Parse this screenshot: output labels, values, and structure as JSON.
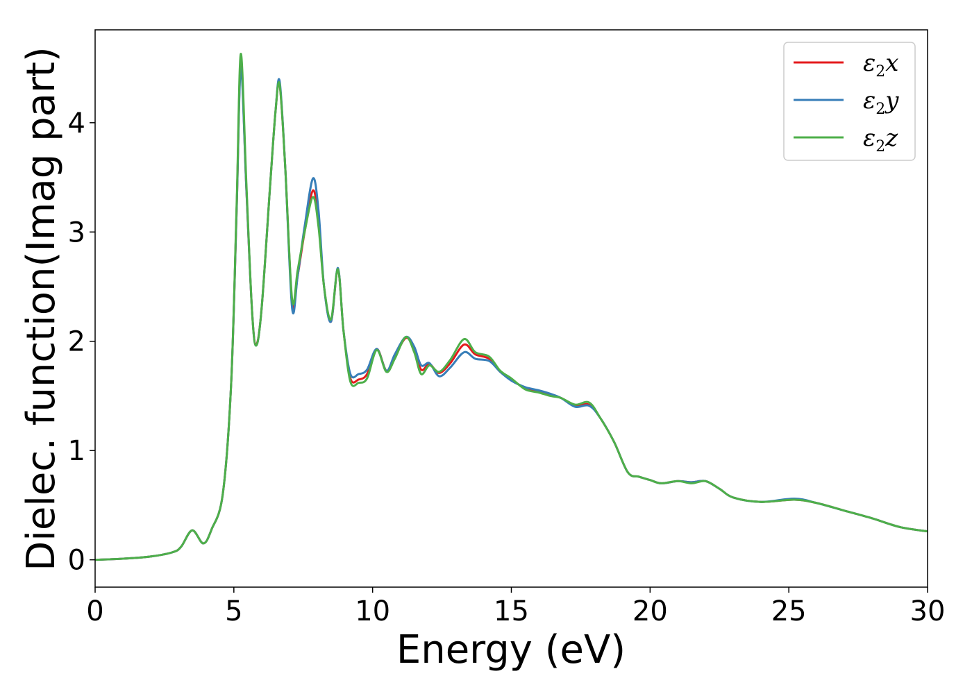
{
  "chart_data": {
    "type": "line",
    "title": "",
    "xlabel": "Energy (eV)",
    "ylabel": "Dielec. function(Imag part)",
    "xlim": [
      0,
      30
    ],
    "ylim": [
      -0.25,
      4.85
    ],
    "xticks": [
      0,
      5,
      10,
      15,
      20,
      25,
      30
    ],
    "yticks": [
      0,
      1,
      2,
      3,
      4
    ],
    "xtick_labels": [
      "0",
      "5",
      "10",
      "15",
      "20",
      "25",
      "30"
    ],
    "ytick_labels": [
      "0",
      "1",
      "2",
      "3",
      "4"
    ],
    "grid": false,
    "legend_position": "top-right",
    "series": [
      {
        "name": "ε2x",
        "legend": {
          "symbol": "ε",
          "sub": "2",
          "var": "x"
        },
        "color": "#e41a1c",
        "x": [
          0,
          1,
          2,
          2.8,
          3.1,
          3.5,
          3.9,
          4.2,
          4.6,
          4.9,
          5.1,
          5.25,
          5.45,
          5.65,
          5.8,
          6.0,
          6.3,
          6.5,
          6.65,
          6.85,
          7.1,
          7.3,
          7.55,
          7.85,
          8.05,
          8.25,
          8.5,
          8.75,
          8.95,
          9.2,
          9.5,
          9.8,
          10.15,
          10.5,
          10.8,
          11.2,
          11.5,
          11.75,
          12.05,
          12.4,
          12.8,
          13.3,
          13.7,
          14.2,
          14.6,
          15.0,
          15.5,
          16.0,
          16.4,
          16.8,
          17.3,
          17.8,
          18.2,
          18.7,
          19.2,
          19.6,
          20.0,
          20.4,
          21.0,
          21.5,
          22.0,
          22.5,
          23.0,
          24.0,
          25.2,
          26.0,
          27.0,
          28.0,
          29.0,
          30.0
        ],
        "y": [
          0.0,
          0.01,
          0.03,
          0.07,
          0.12,
          0.27,
          0.15,
          0.28,
          0.6,
          1.6,
          3.2,
          4.55,
          3.4,
          2.3,
          1.97,
          2.3,
          3.4,
          4.1,
          4.35,
          3.6,
          2.35,
          2.6,
          3.0,
          3.38,
          3.1,
          2.5,
          2.18,
          2.66,
          2.1,
          1.66,
          1.65,
          1.7,
          1.93,
          1.73,
          1.86,
          2.03,
          1.93,
          1.74,
          1.79,
          1.71,
          1.8,
          1.97,
          1.88,
          1.84,
          1.72,
          1.65,
          1.57,
          1.54,
          1.51,
          1.48,
          1.41,
          1.42,
          1.3,
          1.08,
          0.8,
          0.76,
          0.73,
          0.7,
          0.72,
          0.71,
          0.72,
          0.65,
          0.57,
          0.53,
          0.55,
          0.52,
          0.45,
          0.38,
          0.3,
          0.26
        ]
      },
      {
        "name": "ε2y",
        "legend": {
          "symbol": "ε",
          "sub": "2",
          "var": "y"
        },
        "color": "#377eb8",
        "x": [
          0,
          1,
          2,
          2.8,
          3.1,
          3.5,
          3.9,
          4.2,
          4.6,
          4.9,
          5.1,
          5.25,
          5.45,
          5.65,
          5.8,
          6.0,
          6.3,
          6.5,
          6.65,
          6.85,
          7.1,
          7.3,
          7.55,
          7.85,
          8.05,
          8.25,
          8.5,
          8.75,
          8.95,
          9.2,
          9.5,
          9.8,
          10.15,
          10.5,
          10.8,
          11.2,
          11.5,
          11.75,
          12.05,
          12.4,
          12.8,
          13.3,
          13.7,
          14.2,
          14.6,
          15.0,
          15.5,
          16.0,
          16.4,
          16.8,
          17.3,
          17.8,
          18.2,
          18.7,
          19.2,
          19.6,
          20.0,
          20.4,
          21.0,
          21.5,
          22.0,
          22.5,
          23.0,
          24.0,
          25.2,
          26.0,
          27.0,
          28.0,
          29.0,
          30.0
        ],
        "y": [
          0.0,
          0.01,
          0.03,
          0.07,
          0.12,
          0.27,
          0.15,
          0.28,
          0.6,
          1.6,
          3.2,
          4.5,
          3.4,
          2.3,
          1.96,
          2.3,
          3.4,
          4.1,
          4.38,
          3.6,
          2.3,
          2.6,
          3.05,
          3.49,
          3.2,
          2.5,
          2.18,
          2.67,
          2.1,
          1.7,
          1.7,
          1.74,
          1.93,
          1.73,
          1.88,
          2.04,
          1.95,
          1.78,
          1.8,
          1.68,
          1.76,
          1.9,
          1.84,
          1.82,
          1.72,
          1.64,
          1.58,
          1.55,
          1.52,
          1.48,
          1.4,
          1.41,
          1.3,
          1.08,
          0.8,
          0.76,
          0.73,
          0.7,
          0.72,
          0.71,
          0.72,
          0.65,
          0.57,
          0.53,
          0.56,
          0.52,
          0.45,
          0.38,
          0.3,
          0.26
        ]
      },
      {
        "name": "ε2z",
        "legend": {
          "symbol": "ε",
          "sub": "2",
          "var": "z"
        },
        "color": "#4daf4a",
        "x": [
          0,
          1,
          2,
          2.8,
          3.1,
          3.5,
          3.9,
          4.2,
          4.6,
          4.9,
          5.1,
          5.25,
          5.45,
          5.65,
          5.8,
          6.0,
          6.3,
          6.5,
          6.65,
          6.85,
          7.1,
          7.3,
          7.55,
          7.85,
          8.05,
          8.25,
          8.5,
          8.75,
          8.95,
          9.2,
          9.5,
          9.8,
          10.15,
          10.5,
          10.8,
          11.2,
          11.5,
          11.75,
          12.05,
          12.4,
          12.8,
          13.3,
          13.7,
          14.2,
          14.6,
          15.0,
          15.5,
          16.0,
          16.4,
          16.8,
          17.3,
          17.8,
          18.2,
          18.7,
          19.2,
          19.6,
          20.0,
          20.4,
          21.0,
          21.5,
          22.0,
          22.5,
          23.0,
          24.0,
          25.2,
          26.0,
          27.0,
          28.0,
          29.0,
          30.0
        ],
        "y": [
          0.0,
          0.01,
          0.03,
          0.07,
          0.12,
          0.27,
          0.15,
          0.28,
          0.6,
          1.6,
          3.25,
          4.63,
          3.45,
          2.3,
          1.96,
          2.3,
          3.4,
          4.1,
          4.35,
          3.6,
          2.38,
          2.65,
          3.0,
          3.32,
          3.05,
          2.5,
          2.2,
          2.66,
          2.1,
          1.63,
          1.62,
          1.66,
          1.92,
          1.72,
          1.84,
          2.04,
          1.9,
          1.7,
          1.78,
          1.72,
          1.83,
          2.02,
          1.9,
          1.86,
          1.73,
          1.66,
          1.56,
          1.53,
          1.5,
          1.48,
          1.42,
          1.44,
          1.3,
          1.08,
          0.8,
          0.76,
          0.73,
          0.7,
          0.72,
          0.7,
          0.72,
          0.65,
          0.57,
          0.53,
          0.55,
          0.52,
          0.45,
          0.38,
          0.3,
          0.26
        ]
      }
    ]
  }
}
